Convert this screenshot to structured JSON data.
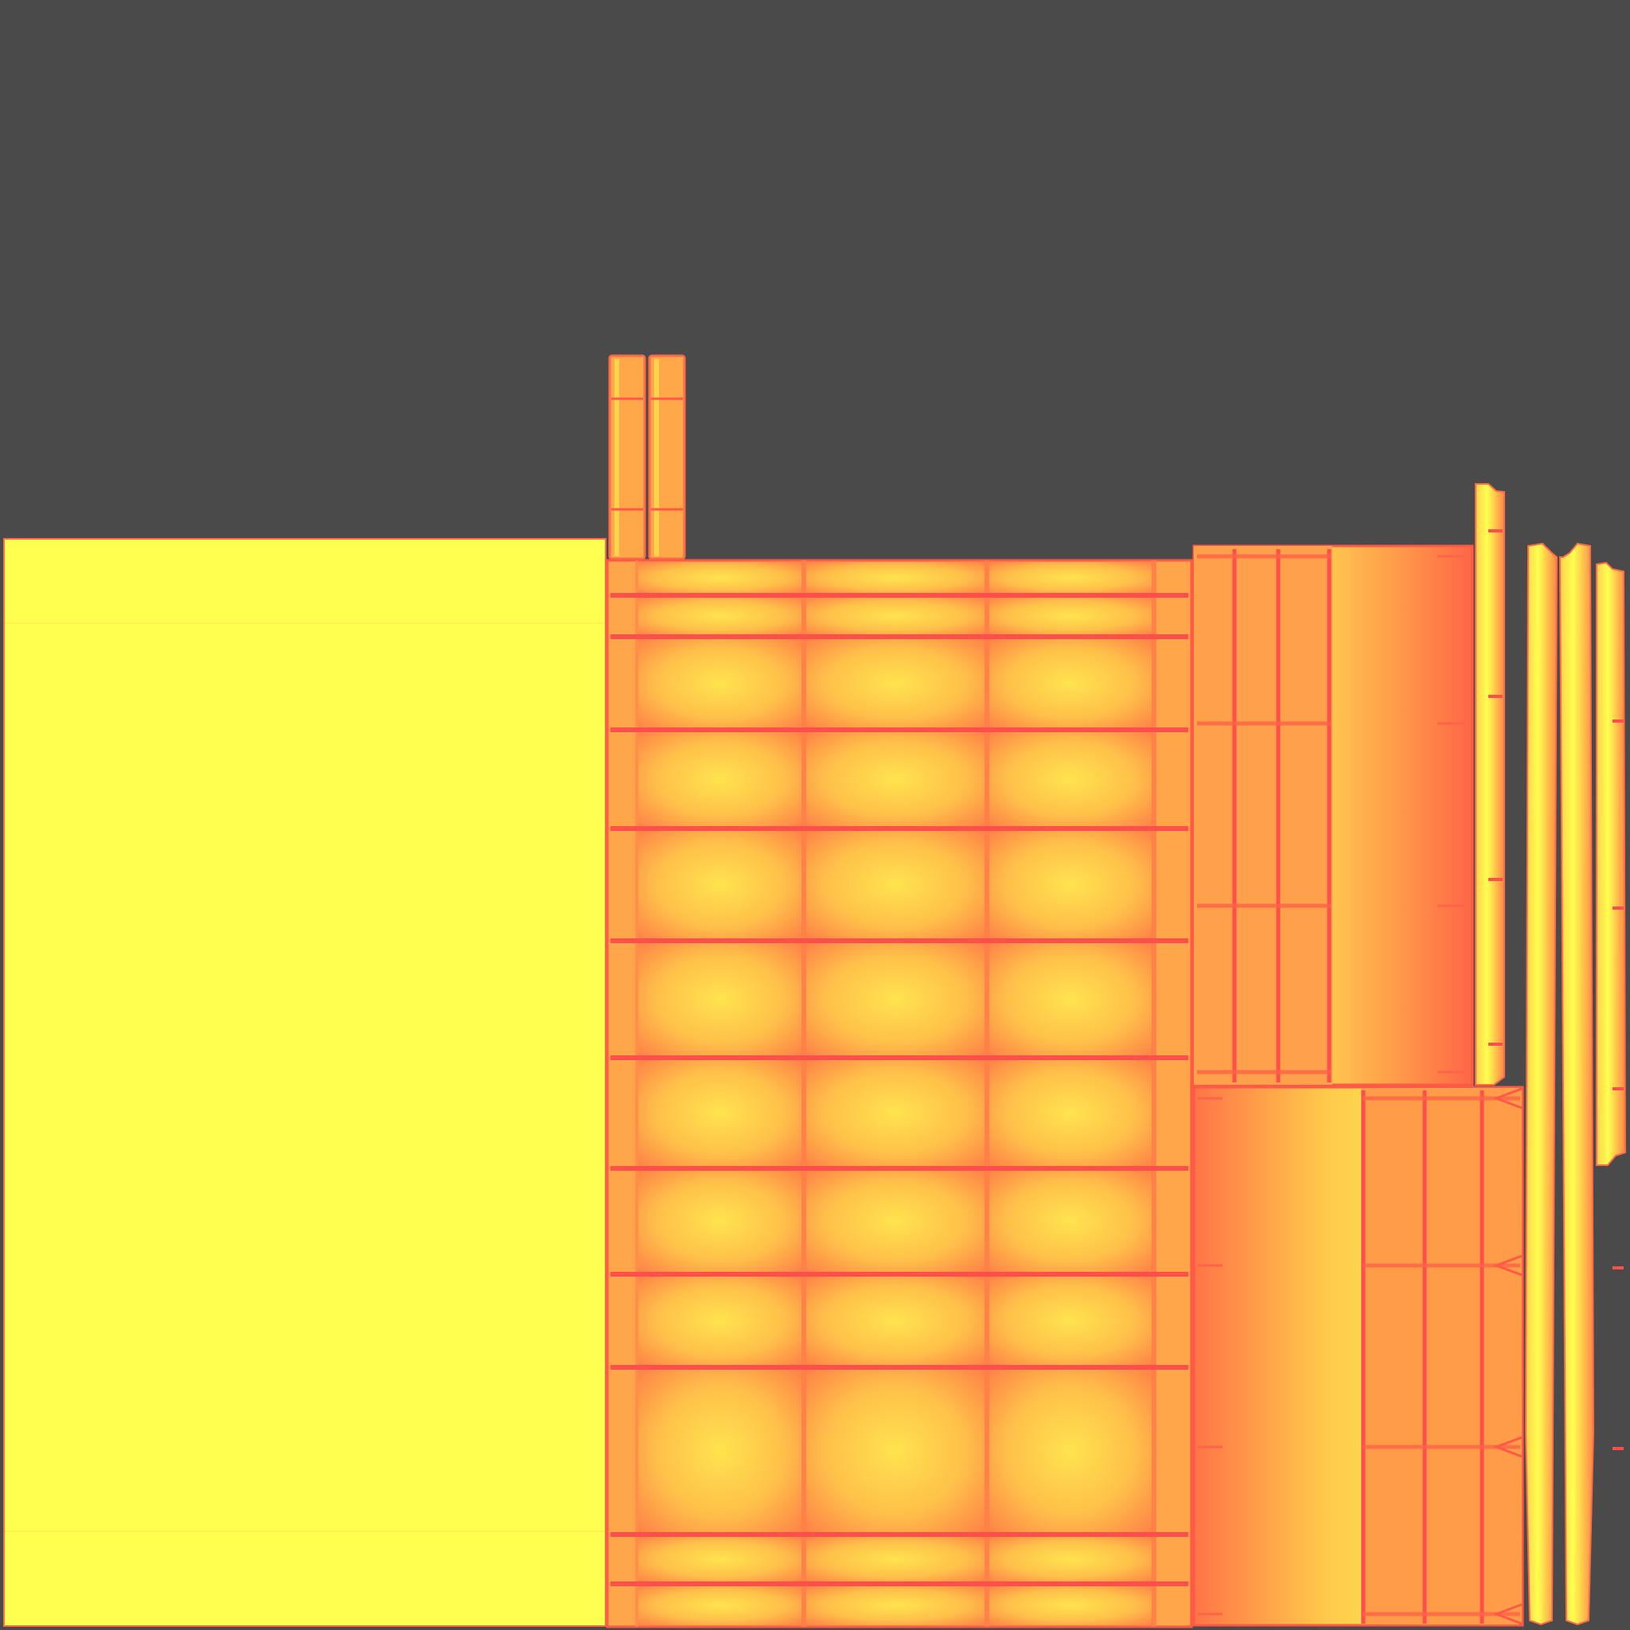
{
  "texture": {
    "background_color": "#4a4a4a",
    "palette": {
      "bright_yellow": "#ffff50",
      "yellow": "#ffe24f",
      "orange": "#ffa84a",
      "deep_orange": "#ff7048",
      "red_line": "#ff4f4c",
      "edge_red": "#ff5a46"
    },
    "islands": [
      {
        "name": "flat-yellow-panel-island",
        "fill": "solid",
        "seams": "none"
      },
      {
        "name": "tall-strip-pair-island",
        "count": 2,
        "fill": "orange"
      },
      {
        "name": "large-grid-panel-island",
        "fill": "radial-gradient",
        "seams": "grid"
      },
      {
        "name": "side-panel-top-island",
        "fill": "gradient",
        "seams": "grid"
      },
      {
        "name": "side-panel-bottom-island",
        "fill": "gradient",
        "seams": "grid"
      },
      {
        "name": "thin-rail-islands",
        "count": 4,
        "fill": "yellow-orange"
      }
    ]
  }
}
